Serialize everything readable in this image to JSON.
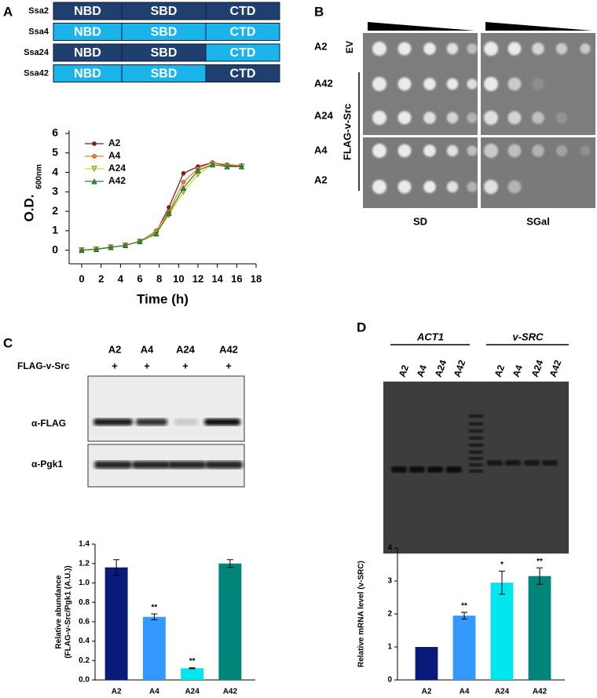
{
  "panel_labels": [
    "A",
    "B",
    "C",
    "D"
  ],
  "domains": {
    "rows": [
      {
        "name": "Ssa2",
        "segments": [
          "NBD",
          "SBD",
          "CTD"
        ],
        "colors": [
          "#1f3f6e",
          "#1f3f6e",
          "#1f3f6e"
        ]
      },
      {
        "name": "Ssa4",
        "segments": [
          "NBD",
          "SBD",
          "CTD"
        ],
        "colors": [
          "#1ab4ea",
          "#1ab4ea",
          "#1ab4ea"
        ]
      },
      {
        "name": "Ssa24",
        "segments": [
          "NBD",
          "SBD",
          "CTD"
        ],
        "colors": [
          "#1f3f6e",
          "#1f3f6e",
          "#1ab4ea"
        ]
      },
      {
        "name": "Ssa42",
        "segments": [
          "NBD",
          "SBD",
          "CTD"
        ],
        "colors": [
          "#1ab4ea",
          "#1ab4ea",
          "#1f3f6e"
        ]
      }
    ]
  },
  "spot_assay": {
    "rows": [
      "A2",
      "A42",
      "A24",
      "A4",
      "A2"
    ],
    "group_labels": [
      "EV",
      "FLAG-v-Src"
    ],
    "media": [
      "SD",
      "SGal"
    ]
  },
  "western": {
    "lanes": [
      "A2",
      "A4",
      "A24",
      "A42"
    ],
    "construct": "FLAG-v-Src",
    "signs": [
      "+",
      "+",
      "+",
      "+"
    ],
    "blots": [
      "α-FLAG",
      "α-Pgk1"
    ]
  },
  "gel": {
    "groups": [
      "ACT1",
      "v-SRC"
    ],
    "lanes": [
      "A2",
      "A4",
      "A24",
      "A42",
      "A2",
      "A4",
      "A24",
      "A42"
    ]
  },
  "chart_data": [
    {
      "type": "line",
      "xlabel": "Time (h)",
      "ylabel": "O.D.",
      "ylabel_subscript": "600nm",
      "x": [
        0,
        1.5,
        3,
        4.5,
        6,
        7.7,
        9,
        10.5,
        12,
        13.5,
        15,
        16.5
      ],
      "series": [
        {
          "name": "A2",
          "color": "#8b1a1a",
          "marker": "circle",
          "values": [
            0,
            0.05,
            0.15,
            0.25,
            0.45,
            0.95,
            2.2,
            3.95,
            4.3,
            4.5,
            4.35,
            4.35
          ]
        },
        {
          "name": "A4",
          "color": "#f08030",
          "marker": "circle",
          "values": [
            0,
            0.05,
            0.15,
            0.25,
            0.45,
            1.0,
            2.0,
            3.5,
            4.2,
            4.5,
            4.4,
            4.35
          ]
        },
        {
          "name": "A24",
          "color": "#d8d830",
          "marker": "triangle-down",
          "values": [
            0,
            0.05,
            0.15,
            0.25,
            0.45,
            0.9,
            1.8,
            3.0,
            3.9,
            4.4,
            4.3,
            4.3
          ]
        },
        {
          "name": "A42",
          "color": "#2e8b2e",
          "marker": "triangle-up",
          "values": [
            0,
            0.05,
            0.15,
            0.25,
            0.45,
            0.85,
            1.9,
            3.2,
            4.1,
            4.4,
            4.3,
            4.3
          ]
        }
      ],
      "xlim": [
        -1.3,
        18
      ],
      "ylim": [
        -0.7,
        6
      ],
      "xticks": [
        0,
        2,
        4,
        6,
        8,
        10,
        12,
        14,
        16,
        18
      ],
      "yticks": [
        0,
        1,
        2,
        3,
        4,
        5,
        6
      ]
    },
    {
      "type": "bar",
      "ylabel": [
        "Relative abundance",
        "(FLAG-v-Src/Pgk1 (A.U.))"
      ],
      "categories": [
        "A2",
        "A4",
        "A24",
        "A42"
      ],
      "values": [
        1.16,
        0.65,
        0.12,
        1.2
      ],
      "errors": [
        0.08,
        0.03,
        0.005,
        0.04
      ],
      "colors": [
        "#0a1a7a",
        "#3399ff",
        "#00e5ee",
        "#00857a"
      ],
      "annotations": [
        null,
        "**",
        "**",
        null
      ],
      "ylim": [
        0,
        1.4
      ],
      "yticks": [
        {
          "value": 0,
          "label": "0.0"
        },
        0.2,
        0.4,
        0.6,
        0.8,
        {
          "value": 1,
          "label": "1.0"
        },
        1.2,
        1.4
      ]
    },
    {
      "type": "bar",
      "ylabel": [
        "Relative mRNA level (v-SRC)"
      ],
      "categories": [
        "A2",
        "A4",
        "A24",
        "A42"
      ],
      "values": [
        1.0,
        1.95,
        2.95,
        3.15
      ],
      "errors": [
        0,
        0.1,
        0.35,
        0.25
      ],
      "colors": [
        "#0a1a7a",
        "#3399ff",
        "#00e5ee",
        "#00857a"
      ],
      "annotations": [
        null,
        "**",
        "*",
        "**"
      ],
      "ylim": [
        0,
        4
      ],
      "yticks": [
        0,
        1,
        2,
        3,
        4
      ]
    }
  ]
}
